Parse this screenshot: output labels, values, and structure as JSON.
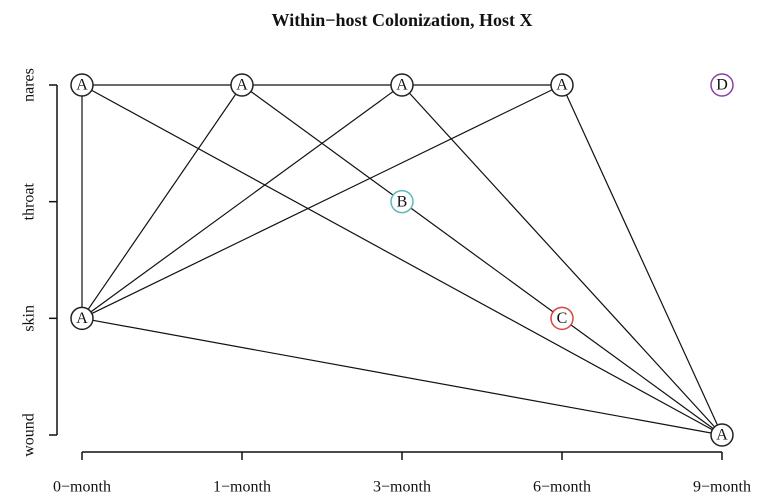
{
  "chart_data": {
    "type": "network",
    "title": "Within−host Colonization, Host X",
    "x_categories": [
      "0−month",
      "1−month",
      "3−month",
      "6−month",
      "9−month"
    ],
    "y_categories": [
      "nares",
      "throat",
      "skin",
      "wound"
    ],
    "nodes": [
      {
        "label": "A",
        "time": "0−month",
        "site": "nares",
        "color": "#222222"
      },
      {
        "label": "A",
        "time": "1−month",
        "site": "nares",
        "color": "#222222"
      },
      {
        "label": "A",
        "time": "3−month",
        "site": "nares",
        "color": "#222222"
      },
      {
        "label": "A",
        "time": "6−month",
        "site": "nares",
        "color": "#222222"
      },
      {
        "label": "D",
        "time": "9−month",
        "site": "nares",
        "color": "#8b3fa8"
      },
      {
        "label": "B",
        "time": "3−month",
        "site": "throat",
        "color": "#5fb8b8"
      },
      {
        "label": "A",
        "time": "0−month",
        "site": "skin",
        "color": "#222222"
      },
      {
        "label": "C",
        "time": "6−month",
        "site": "skin",
        "color": "#d9463a"
      },
      {
        "label": "A",
        "time": "9−month",
        "site": "wound",
        "color": "#222222"
      }
    ],
    "edges": [
      [
        0,
        1
      ],
      [
        1,
        2
      ],
      [
        2,
        3
      ],
      [
        0,
        6
      ],
      [
        6,
        1
      ],
      [
        6,
        2
      ],
      [
        6,
        3
      ],
      [
        1,
        5
      ],
      [
        5,
        7
      ],
      [
        7,
        8
      ],
      [
        0,
        8
      ],
      [
        6,
        8
      ],
      [
        2,
        8
      ],
      [
        3,
        8
      ]
    ]
  }
}
